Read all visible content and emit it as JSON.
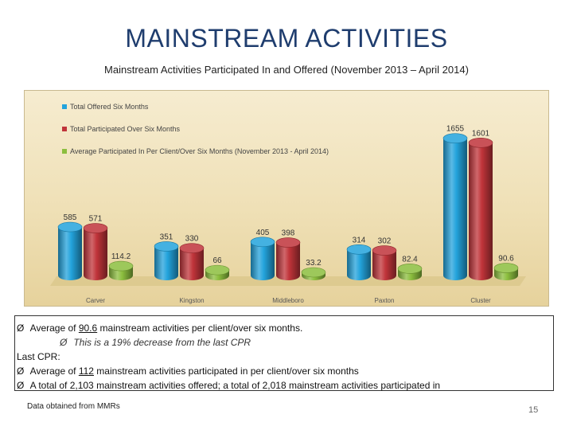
{
  "slide": {
    "title": "MAINSTREAM ACTIVITIES",
    "subtitle": "Mainstream Activities Participated In and Offered  (November 2013 – April 2014)",
    "page_number": "15",
    "source_note": "Data obtained from MMRs"
  },
  "notes": {
    "line1_pre": "Average of ",
    "line1_value": "90.6",
    "line1_post": " mainstream activities per client/over six months.",
    "line2": "This is a 19% decrease  from the last CPR",
    "line3": "Last CPR:",
    "line4_pre": "Average of ",
    "line4_value": "112",
    "line4_post": " mainstream activities participated in per client/over six months",
    "line5": "A total of 2,103 mainstream activities offered; a total of 2,018 mainstream activities participated in",
    "bullet_glyph": "Ø"
  },
  "chart_data": {
    "type": "bar",
    "style": "3d-cylinder",
    "categories": [
      "Carver",
      "Kingston",
      "Middleboro",
      "Paxton",
      "Cluster"
    ],
    "series": [
      {
        "name": "Total Offered Six Months",
        "color": "#23a3dc",
        "values": [
          585,
          351,
          405,
          314,
          1655
        ],
        "labels": [
          "585",
          "351",
          "405",
          "314",
          "1655"
        ]
      },
      {
        "name": "Total Participated Over Six Months",
        "color": "#c0343a",
        "values": [
          571,
          330,
          398,
          302,
          1601
        ],
        "labels": [
          "571",
          "330",
          "398",
          "302",
          "1601"
        ]
      },
      {
        "name": "Average Participated In Per Client/Over Six Months (November 2013 - April 2014)",
        "color": "#8cbe3e",
        "values": [
          114.2,
          66,
          33.2,
          82.4,
          90.6
        ],
        "labels": [
          "114.2",
          "66",
          "33.2",
          "82.4",
          "90.6"
        ]
      }
    ],
    "ylim": [
      0,
      1700
    ],
    "legend": "top-left",
    "title": "",
    "xlabel": "",
    "ylabel": ""
  }
}
